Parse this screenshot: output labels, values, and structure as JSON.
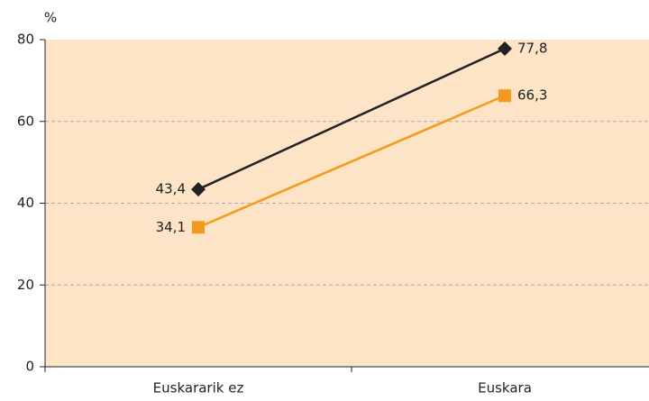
{
  "chart_data": {
    "type": "line",
    "ylabel": "%",
    "categories": [
      "Euskararik ez",
      "Euskara"
    ],
    "series": [
      {
        "color": "#222222",
        "marker": "diamond",
        "values": [
          43.4,
          77.8
        ],
        "value_labels": [
          "43,4",
          "77,8"
        ]
      },
      {
        "color": "#f39a1e",
        "marker": "square",
        "values": [
          34.1,
          66.3
        ],
        "value_labels": [
          "34,1",
          "66,3"
        ]
      }
    ],
    "ylim": [
      0,
      80
    ],
    "yticks": [
      0,
      20,
      40,
      60,
      80
    ],
    "grid": true,
    "plot_background": "#fde4c6"
  }
}
